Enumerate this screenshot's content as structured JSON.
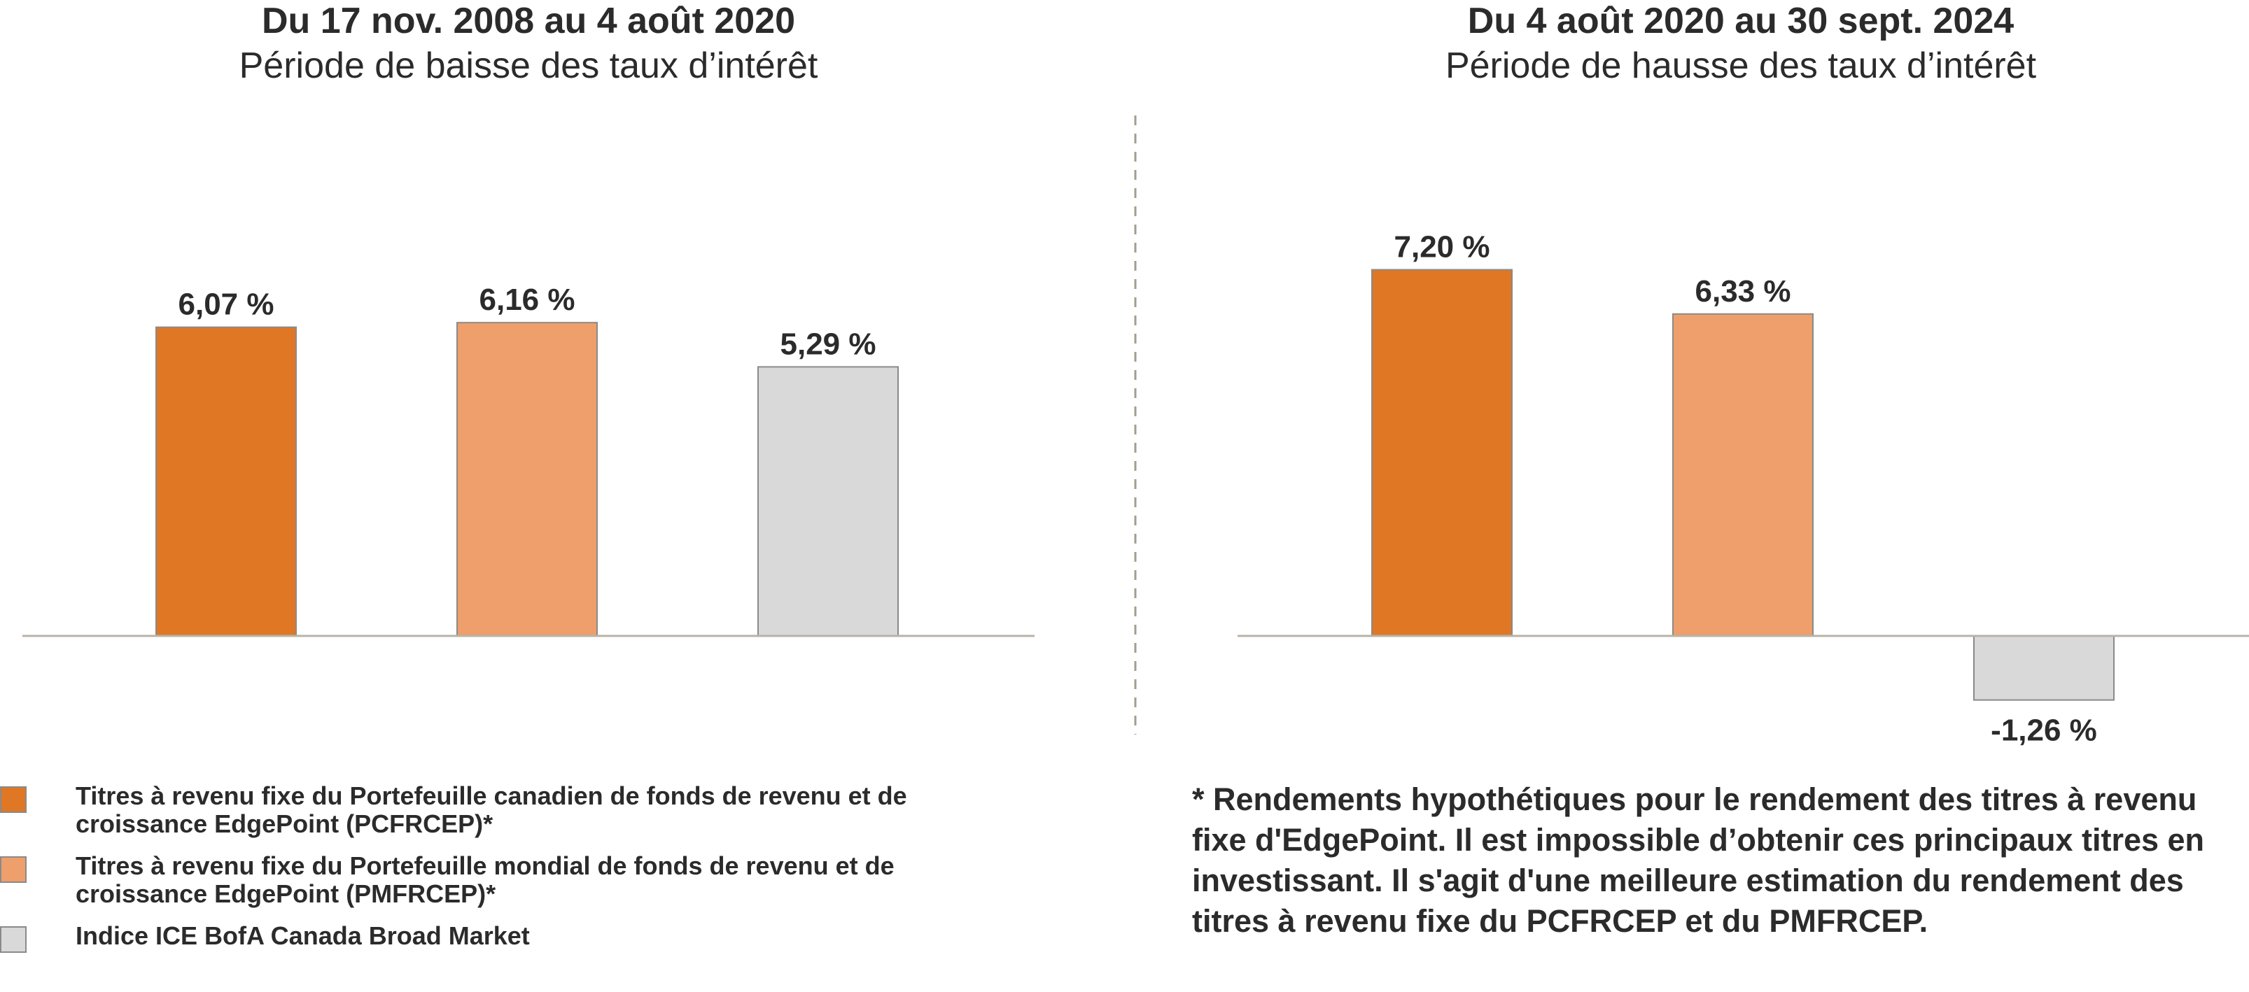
{
  "chart_data": [
    {
      "type": "bar",
      "title": "Du 17 nov. 2008 au 4 août 2020",
      "subtitle": "Période de baisse des taux d’intérêt",
      "categories": [
        "PCFRCEP",
        "PMFRCEP",
        "Indice ICE BofA Canada Broad Market"
      ],
      "values": [
        6.07,
        6.16,
        5.29
      ],
      "labels": [
        "6,07 %",
        "6,16 %",
        "5,29 %"
      ],
      "colors": [
        "#e07725",
        "#ee9f6b",
        "#d9d9d9"
      ],
      "ylim": [
        -2.0,
        8.5
      ],
      "grid": false,
      "xlabel": "",
      "ylabel": ""
    },
    {
      "type": "bar",
      "title": "Du 4 août 2020 au 30 sept. 2024",
      "subtitle": "Période de hausse des taux d’intérêt",
      "categories": [
        "PCFRCEP",
        "PMFRCEP",
        "Indice ICE BofA Canada Broad Market"
      ],
      "values": [
        7.2,
        6.33,
        -1.26
      ],
      "labels": [
        "7,20 %",
        "6,33 %",
        "-1,26 %"
      ],
      "colors": [
        "#e07725",
        "#ee9f6b",
        "#d9d9d9"
      ],
      "ylim": [
        -2.0,
        8.5
      ],
      "grid": false,
      "xlabel": "",
      "ylabel": ""
    }
  ],
  "legend": {
    "items": [
      {
        "label": "Titres à revenu fixe du Portefeuille canadien de fonds de revenu et de croissance EdgePoint (PCFRCEP)*",
        "color": "#e07725"
      },
      {
        "label": "Titres à revenu fixe du Portefeuille mondial de fonds de revenu et de croissance EdgePoint (PMFRCEP)*",
        "color": "#ee9f6b"
      },
      {
        "label": "Indice ICE BofA Canada Broad Market",
        "color": "#d9d9d9"
      }
    ]
  },
  "footnote": "* Rendements hypothétiques pour le rendement des titres à revenu fixe d'EdgePoint. Il est impossible d’obtenir ces principaux titres en investissant. Il s'agit d'une meilleure estimation du rendement des titres à revenu fixe du PCFRCEP et du PMFRCEP."
}
